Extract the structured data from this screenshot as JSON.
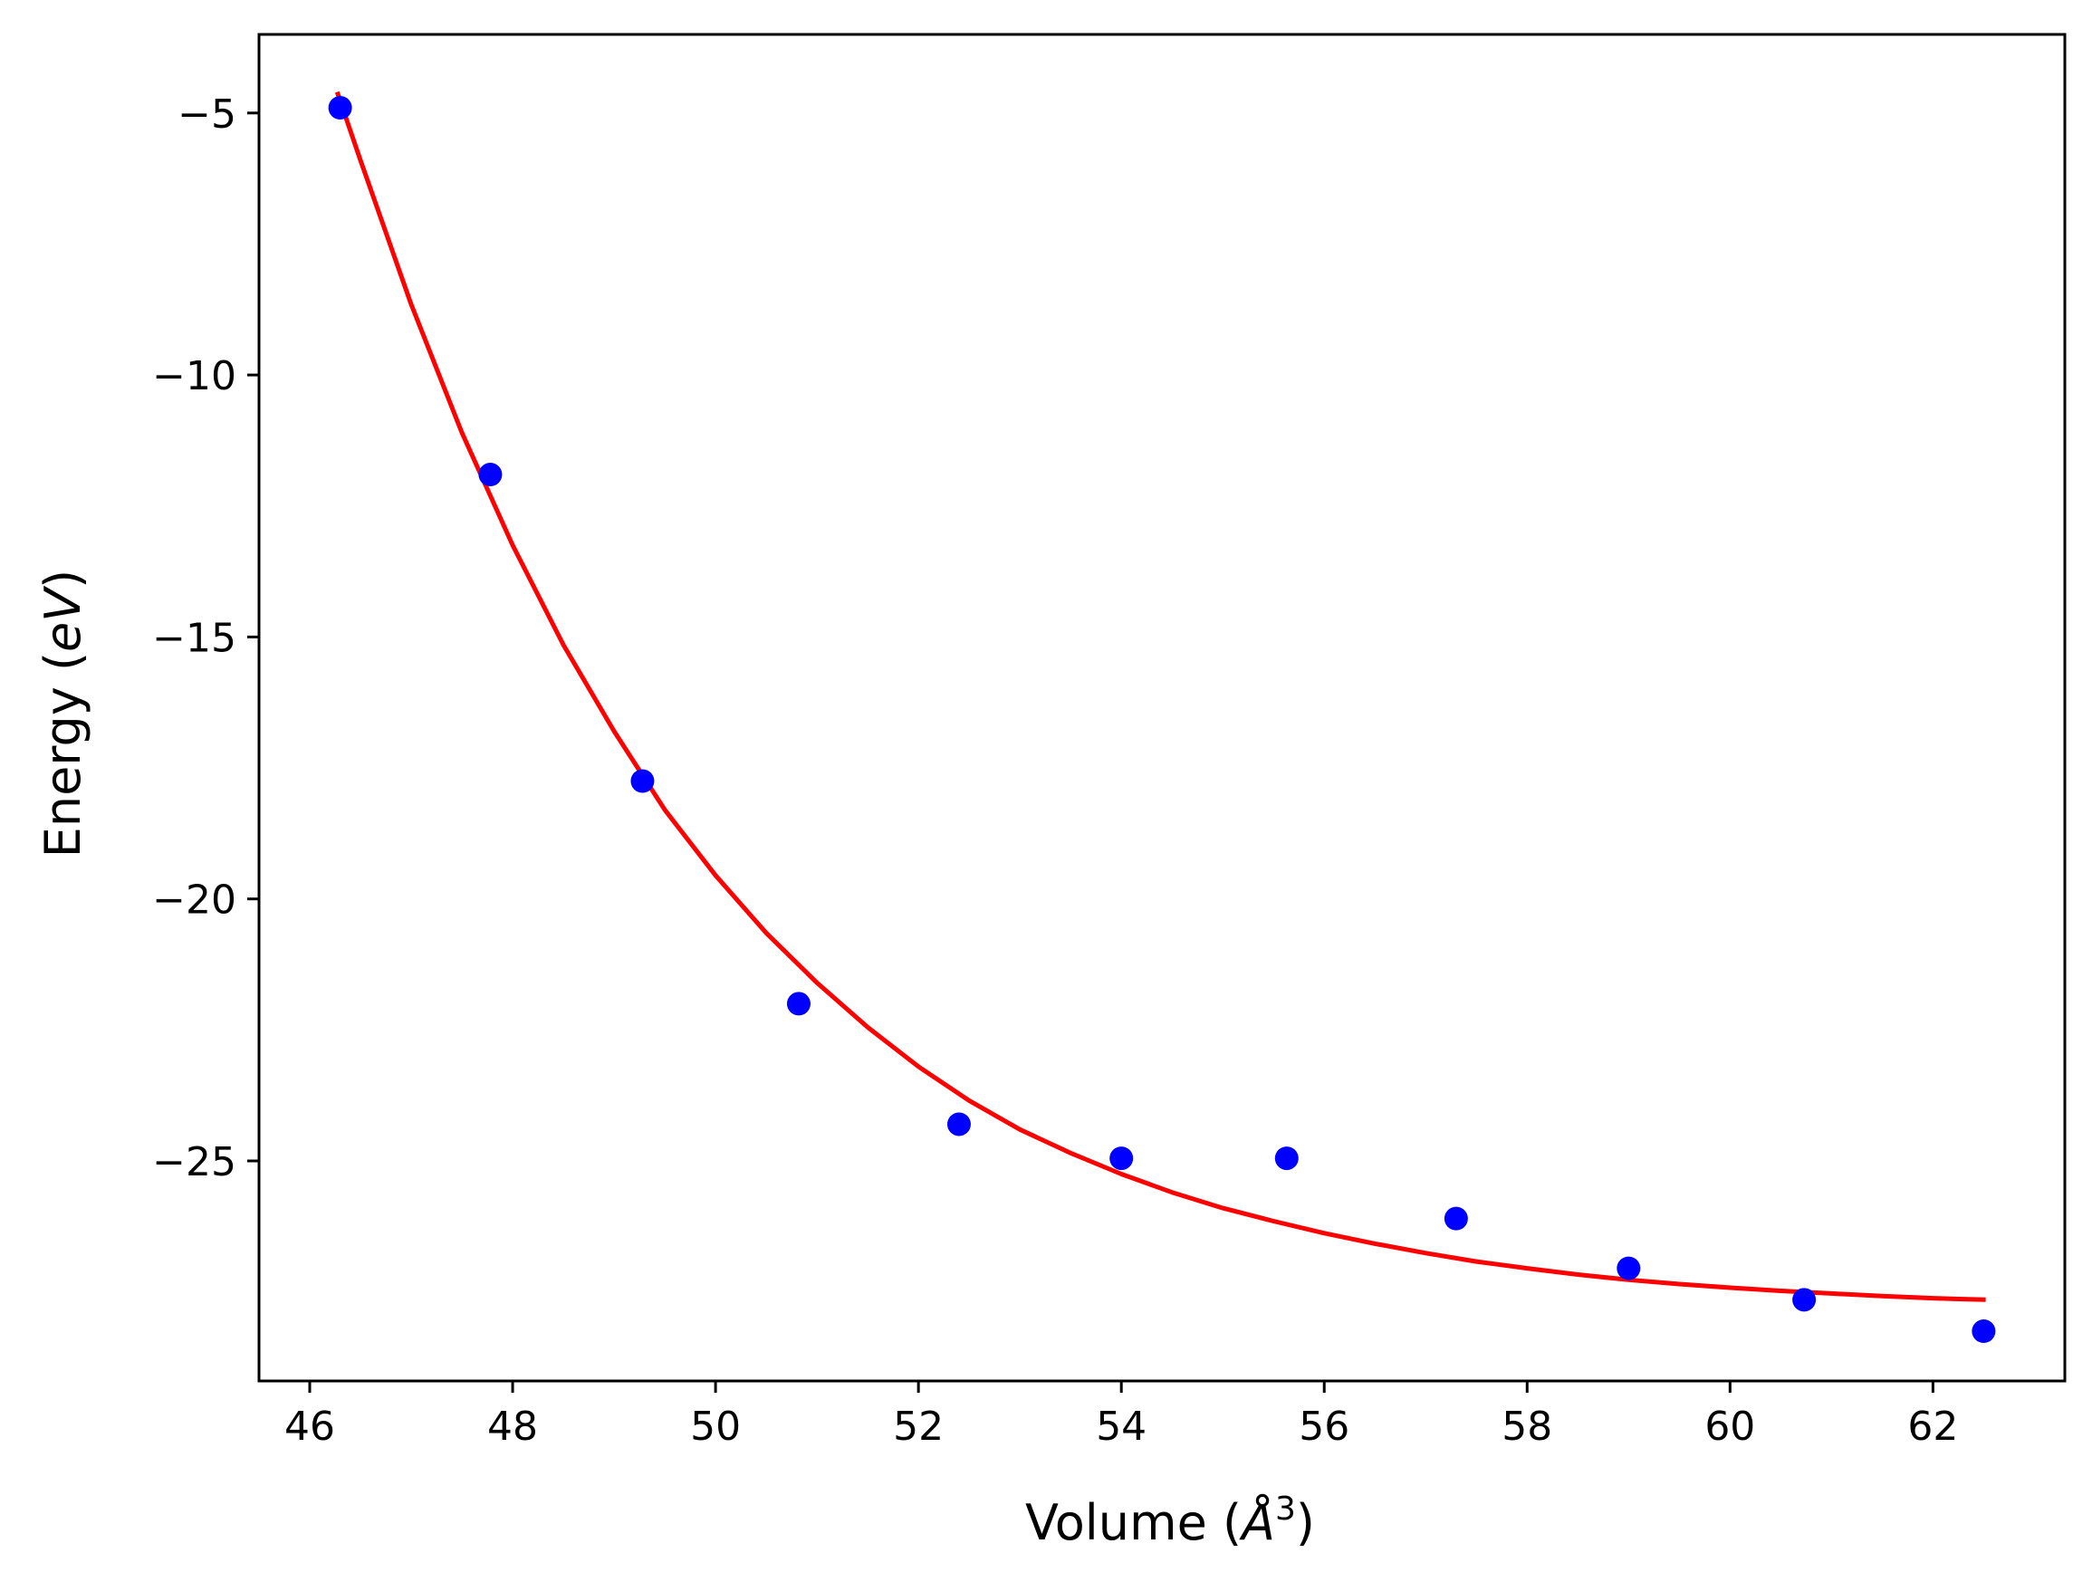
{
  "chart_data": {
    "type": "scatter",
    "xlabel": {
      "prefix": "Volume (",
      "symbol": "Å",
      "sup": "3",
      "suffix": ")"
    },
    "ylabel": {
      "prefix": "Energy (",
      "symbol": "eV",
      "suffix": ")"
    },
    "xlim": [
      45.5,
      63.3
    ],
    "ylim": [
      -29.2,
      -3.5
    ],
    "x_ticks": [
      46,
      48,
      50,
      52,
      54,
      56,
      58,
      60,
      62
    ],
    "x_tick_labels": [
      "46",
      "48",
      "50",
      "52",
      "54",
      "56",
      "58",
      "60",
      "62"
    ],
    "y_ticks": [
      -5,
      -10,
      -15,
      -20,
      -25
    ],
    "y_tick_labels": [
      "−5",
      "−10",
      "−15",
      "−20",
      "−25"
    ],
    "grid": false,
    "series": [
      {
        "kind": "points",
        "color": "#0000ff",
        "x": [
          46.3,
          47.78,
          49.28,
          50.82,
          52.4,
          54.0,
          55.63,
          57.3,
          59.0,
          60.73,
          62.5
        ],
        "y": [
          -4.9,
          -11.9,
          -17.75,
          -22.0,
          -24.3,
          -24.95,
          -24.95,
          -26.1,
          -27.05,
          -27.65,
          -28.25
        ]
      },
      {
        "kind": "line",
        "color": "#ff0000",
        "x": [
          46.27,
          46.5,
          47.0,
          47.5,
          48.0,
          48.5,
          49.0,
          49.5,
          50.0,
          50.5,
          51.0,
          51.5,
          52.0,
          52.5,
          53.0,
          53.5,
          54.0,
          54.5,
          55.0,
          55.5,
          56.0,
          56.5,
          57.0,
          57.5,
          58.0,
          58.5,
          59.0,
          59.5,
          60.0,
          60.5,
          61.0,
          61.5,
          62.0,
          62.52
        ],
        "y": [
          -4.6,
          -5.9,
          -8.65,
          -11.1,
          -13.25,
          -15.15,
          -16.8,
          -18.3,
          -19.55,
          -20.65,
          -21.6,
          -22.45,
          -23.2,
          -23.85,
          -24.4,
          -24.85,
          -25.25,
          -25.6,
          -25.9,
          -26.15,
          -26.38,
          -26.58,
          -26.76,
          -26.92,
          -27.05,
          -27.17,
          -27.27,
          -27.35,
          -27.42,
          -27.48,
          -27.53,
          -27.58,
          -27.62,
          -27.65
        ]
      }
    ]
  }
}
